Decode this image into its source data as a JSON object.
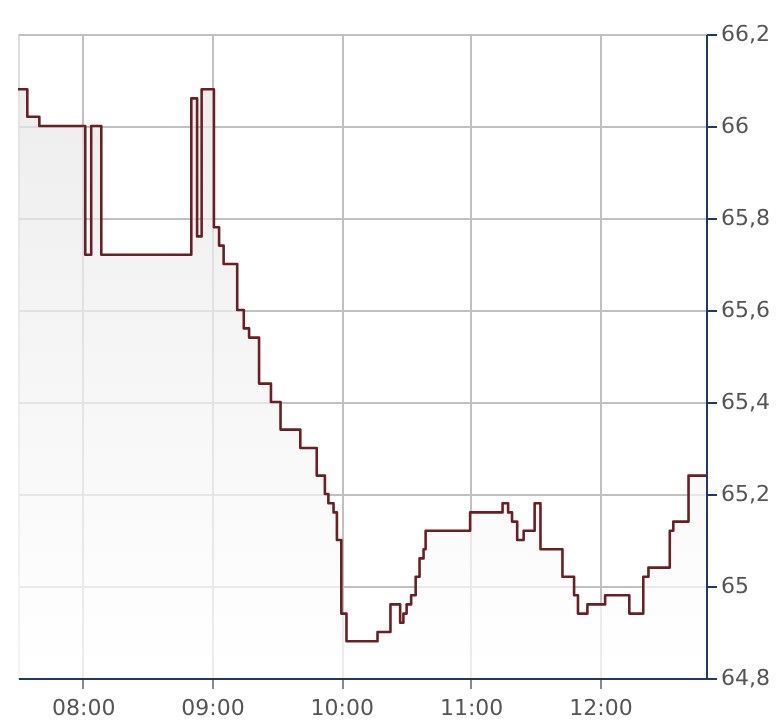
{
  "chart_data": {
    "type": "area",
    "x": [
      7.5,
      7.572,
      7.572,
      7.665,
      7.665,
      8.02,
      8.02,
      8.066,
      8.066,
      8.144,
      8.144,
      8.84,
      8.84,
      8.885,
      8.885,
      8.92,
      8.92,
      9.015,
      9.015,
      9.055,
      9.055,
      9.09,
      9.09,
      9.195,
      9.195,
      9.246,
      9.246,
      9.287,
      9.287,
      9.364,
      9.364,
      9.456,
      9.456,
      9.53,
      9.53,
      9.683,
      9.683,
      9.81,
      9.81,
      9.873,
      9.873,
      9.9,
      9.9,
      9.94,
      9.94,
      9.966,
      9.966,
      10.0,
      10.0,
      10.04,
      10.04,
      10.28,
      10.28,
      10.38,
      10.38,
      10.455,
      10.455,
      10.48,
      10.48,
      10.505,
      10.505,
      10.54,
      10.54,
      10.575,
      10.575,
      10.605,
      10.605,
      10.636,
      10.636,
      10.652,
      10.652,
      10.996,
      10.996,
      11.247,
      11.247,
      11.29,
      11.29,
      11.32,
      11.32,
      11.36,
      11.36,
      11.41,
      11.41,
      11.495,
      11.495,
      11.54,
      11.54,
      11.71,
      11.71,
      11.8,
      11.8,
      11.83,
      11.83,
      11.903,
      11.903,
      12.04,
      12.04,
      12.227,
      12.227,
      12.335,
      12.335,
      12.375,
      12.375,
      12.54,
      12.54,
      12.567,
      12.567,
      12.685,
      12.685,
      12.82
    ],
    "series": [
      {
        "color": "#6b1f24",
        "values": [
          66.08,
          66.08,
          66.02,
          66.02,
          66.0,
          66.0,
          65.72,
          65.72,
          66.0,
          66.0,
          65.72,
          65.72,
          66.06,
          66.06,
          65.76,
          65.76,
          66.08,
          66.08,
          65.78,
          65.78,
          65.74,
          65.74,
          65.7,
          65.7,
          65.6,
          65.6,
          65.56,
          65.56,
          65.54,
          65.54,
          65.44,
          65.44,
          65.4,
          65.4,
          65.34,
          65.34,
          65.3,
          65.3,
          65.24,
          65.24,
          65.2,
          65.2,
          65.18,
          65.18,
          65.16,
          65.16,
          65.1,
          65.1,
          64.94,
          64.94,
          64.88,
          64.88,
          64.9,
          64.9,
          64.96,
          64.96,
          64.92,
          64.92,
          64.94,
          64.94,
          64.96,
          64.96,
          64.98,
          64.98,
          65.02,
          65.02,
          65.06,
          65.06,
          65.08,
          65.08,
          65.12,
          65.12,
          65.16,
          65.16,
          65.18,
          65.18,
          65.16,
          65.16,
          65.14,
          65.14,
          65.1,
          65.1,
          65.12,
          65.12,
          65.18,
          65.18,
          65.08,
          65.08,
          65.02,
          65.02,
          64.98,
          64.98,
          64.94,
          64.94,
          64.96,
          64.96,
          64.98,
          64.98,
          64.94,
          64.94,
          65.02,
          65.02,
          65.04,
          65.04,
          65.12,
          65.12,
          65.14,
          65.14,
          65.24,
          65.24
        ]
      }
    ],
    "xlim": [
      7.5,
      12.82
    ],
    "ylim": [
      64.8,
      66.2
    ],
    "xticks": [
      {
        "value": 8,
        "label": "08:00"
      },
      {
        "value": 9,
        "label": "09:00"
      },
      {
        "value": 10,
        "label": "10:00"
      },
      {
        "value": 11,
        "label": "11:00"
      },
      {
        "value": 12,
        "label": "12:00"
      }
    ],
    "yticks": [
      {
        "value": 64.8,
        "label": "64,8"
      },
      {
        "value": 65,
        "label": "65"
      },
      {
        "value": 65.2,
        "label": "65,2"
      },
      {
        "value": 65.4,
        "label": "65,4"
      },
      {
        "value": 65.6,
        "label": "65,6"
      },
      {
        "value": 65.8,
        "label": "65,8"
      },
      {
        "value": 66,
        "label": "66"
      },
      {
        "value": 66.2,
        "label": "66,2"
      }
    ],
    "grid": true
  }
}
